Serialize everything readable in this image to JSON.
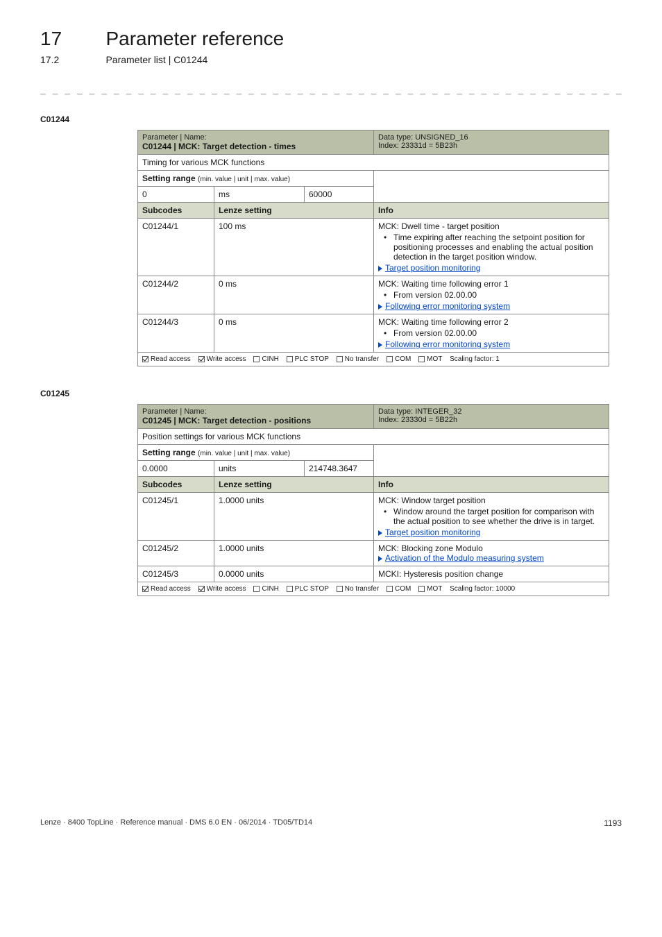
{
  "header": {
    "chapter_num": "17",
    "chapter_title": "Parameter reference",
    "section_num": "17.2",
    "section_title": "Parameter list | C01244",
    "dash_rule": "_ _ _ _ _ _ _ _ _ _ _ _ _ _ _ _ _ _ _ _ _ _ _ _ _ _ _ _ _ _ _ _ _ _ _ _ _ _ _ _ _ _ _ _ _ _ _ _ _ _ _ _ _ _ _ _ _ _ _ _ _ _ _"
  },
  "colors": {
    "header_bg": "#b9c0a7",
    "subhdr_bg": "#d7dbc9",
    "border": "#888888",
    "link": "#0046c8",
    "text": "#1a1a1a",
    "page_bg": "#ffffff"
  },
  "labels": {
    "param_name": "Parameter | Name:",
    "data_type": "Data type:",
    "index": "Index:",
    "setting_range": "Setting range",
    "setting_range_paren": "(min. value | unit | max. value)",
    "subcodes": "Subcodes",
    "lenze_setting": "Lenze setting",
    "info": "Info",
    "access": {
      "read": "Read access",
      "write": "Write access",
      "cinh": "CINH",
      "plcstop": "PLC STOP",
      "notransfer": "No transfer",
      "com": "COM",
      "mot": "MOT",
      "scaling": "Scaling factor:"
    }
  },
  "tables": [
    {
      "code_id": "C01244",
      "title": "C01244 | MCK: Target detection - times",
      "data_type": "UNSIGNED_16",
      "index": "23331d = 5B23h",
      "description": "Timing for various MCK functions",
      "range": {
        "min": "0",
        "unit": "ms",
        "max": "60000"
      },
      "rows": [
        {
          "sub": "C01244/1",
          "setting": "100 ms",
          "info_title": "MCK: Dwell time - target position",
          "bullets": [
            "Time expiring after reaching the setpoint position for positioning processes and enabling the actual position detection in the target position window."
          ],
          "link": "Target position monitoring"
        },
        {
          "sub": "C01244/2",
          "setting": "0 ms",
          "info_title": "MCK: Waiting time following error 1",
          "bullets": [
            "From version 02.00.00"
          ],
          "link": "Following error monitoring system"
        },
        {
          "sub": "C01244/3",
          "setting": "0 ms",
          "info_title": "MCK: Waiting time following error 2",
          "bullets": [
            "From version 02.00.00"
          ],
          "link": "Following error monitoring system"
        }
      ],
      "access": {
        "read": true,
        "write": true,
        "cinh": false,
        "plcstop": false,
        "notransfer": false,
        "com": false,
        "mot": false,
        "scaling": "1"
      }
    },
    {
      "code_id": "C01245",
      "title": "C01245 | MCK: Target detection - positions",
      "data_type": "INTEGER_32",
      "index": "23330d = 5B22h",
      "description": "Position settings for various MCK functions",
      "range": {
        "min": "0.0000",
        "unit": "units",
        "max": "214748.3647"
      },
      "rows": [
        {
          "sub": "C01245/1",
          "setting": "1.0000 units",
          "info_title": "MCK: Window target position",
          "bullets": [
            "Window around the target position for comparison with the actual position to see whether the drive is in target."
          ],
          "link": "Target position monitoring"
        },
        {
          "sub": "C01245/2",
          "setting": "1.0000 units",
          "info_title": "MCK: Blocking zone Modulo",
          "bullets": [],
          "link": "Activation of the Modulo measuring system"
        },
        {
          "sub": "C01245/3",
          "setting": "0.0000 units",
          "info_title": "MCKI: Hysteresis position change",
          "bullets": [],
          "link": null
        }
      ],
      "access": {
        "read": true,
        "write": true,
        "cinh": false,
        "plcstop": false,
        "notransfer": false,
        "com": false,
        "mot": false,
        "scaling": "10000"
      }
    }
  ],
  "footer": {
    "left": "Lenze · 8400 TopLine · Reference manual · DMS 6.0 EN · 06/2014 · TD05/TD14",
    "page": "1193"
  }
}
